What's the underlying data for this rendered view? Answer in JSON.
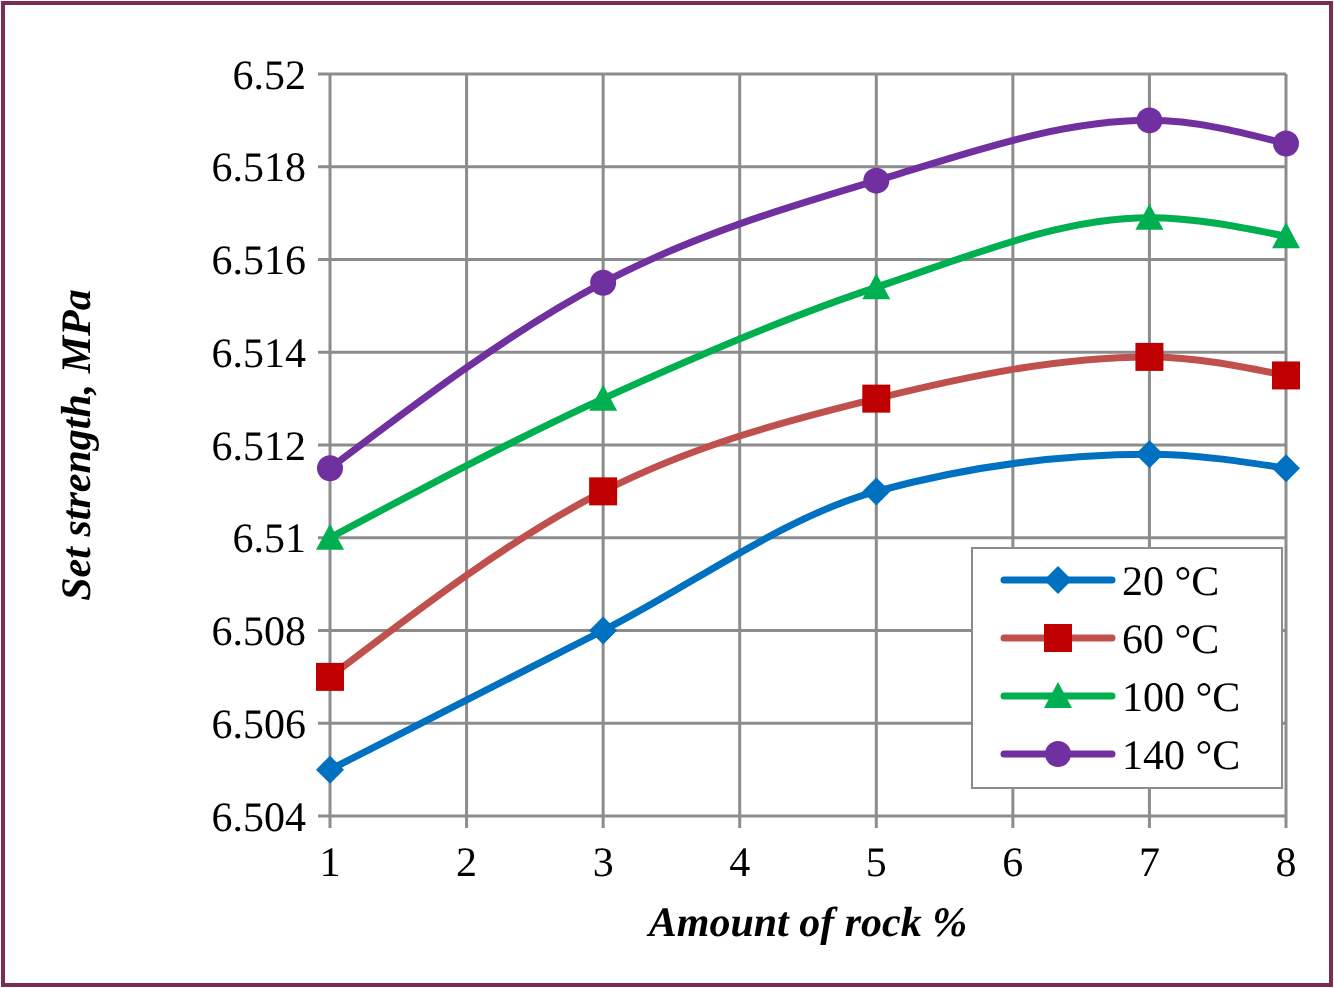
{
  "chart_data": {
    "type": "line",
    "xlabel": "Amount of rock %",
    "ylabel": "Set strength, MPa",
    "x": [
      1,
      3,
      5,
      7,
      8
    ],
    "series": [
      {
        "name": "20 °C",
        "color": "#0070c0",
        "marker": "diamond",
        "values": [
          6.505,
          6.508,
          6.511,
          6.5118,
          6.5115
        ]
      },
      {
        "name": "60 °C",
        "color": "#c0504d",
        "marker": "square",
        "values": [
          6.507,
          6.511,
          6.513,
          6.5139,
          6.5135
        ]
      },
      {
        "name": "100 °C",
        "color": "#00b050",
        "marker": "triangle",
        "values": [
          6.51,
          6.513,
          6.5154,
          6.5169,
          6.5165
        ]
      },
      {
        "name": "140 °C",
        "color": "#7030a0",
        "marker": "circle",
        "values": [
          6.5115,
          6.5155,
          6.5177,
          6.519,
          6.5185
        ]
      }
    ],
    "xlim": [
      1,
      8
    ],
    "xticks": [
      1,
      2,
      3,
      4,
      5,
      6,
      7,
      8
    ],
    "ylim": [
      6.504,
      6.52
    ],
    "yticks": [
      6.504,
      6.506,
      6.508,
      6.51,
      6.512,
      6.514,
      6.516,
      6.518,
      6.52
    ],
    "grid": true,
    "legend": "bottom right"
  }
}
